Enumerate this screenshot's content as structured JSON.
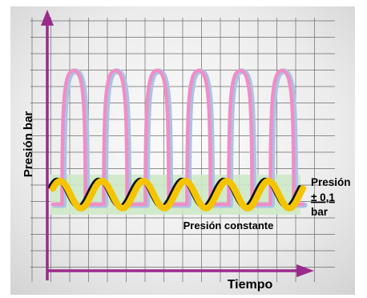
{
  "labels": {
    "y_axis": "Presión bar",
    "x_axis": "Tiempo",
    "constant": "Presión constante",
    "tolerance_line1": "Presión",
    "tolerance_line2": "± 0,1",
    "tolerance_line3": "bar"
  },
  "colors": {
    "axis": "#9b2a8c",
    "pulse_pink": "#f08ec6",
    "pulse_blue": "#a8c4e6",
    "constant_yellow": "#f5c400",
    "constant_black": "#111111",
    "tolerance_band": "#cde9c7",
    "grid": "#6b6b6b",
    "background": "#e9e9e9"
  },
  "waves": {
    "pulse_peaks": 6,
    "constant_cycles": 6
  }
}
